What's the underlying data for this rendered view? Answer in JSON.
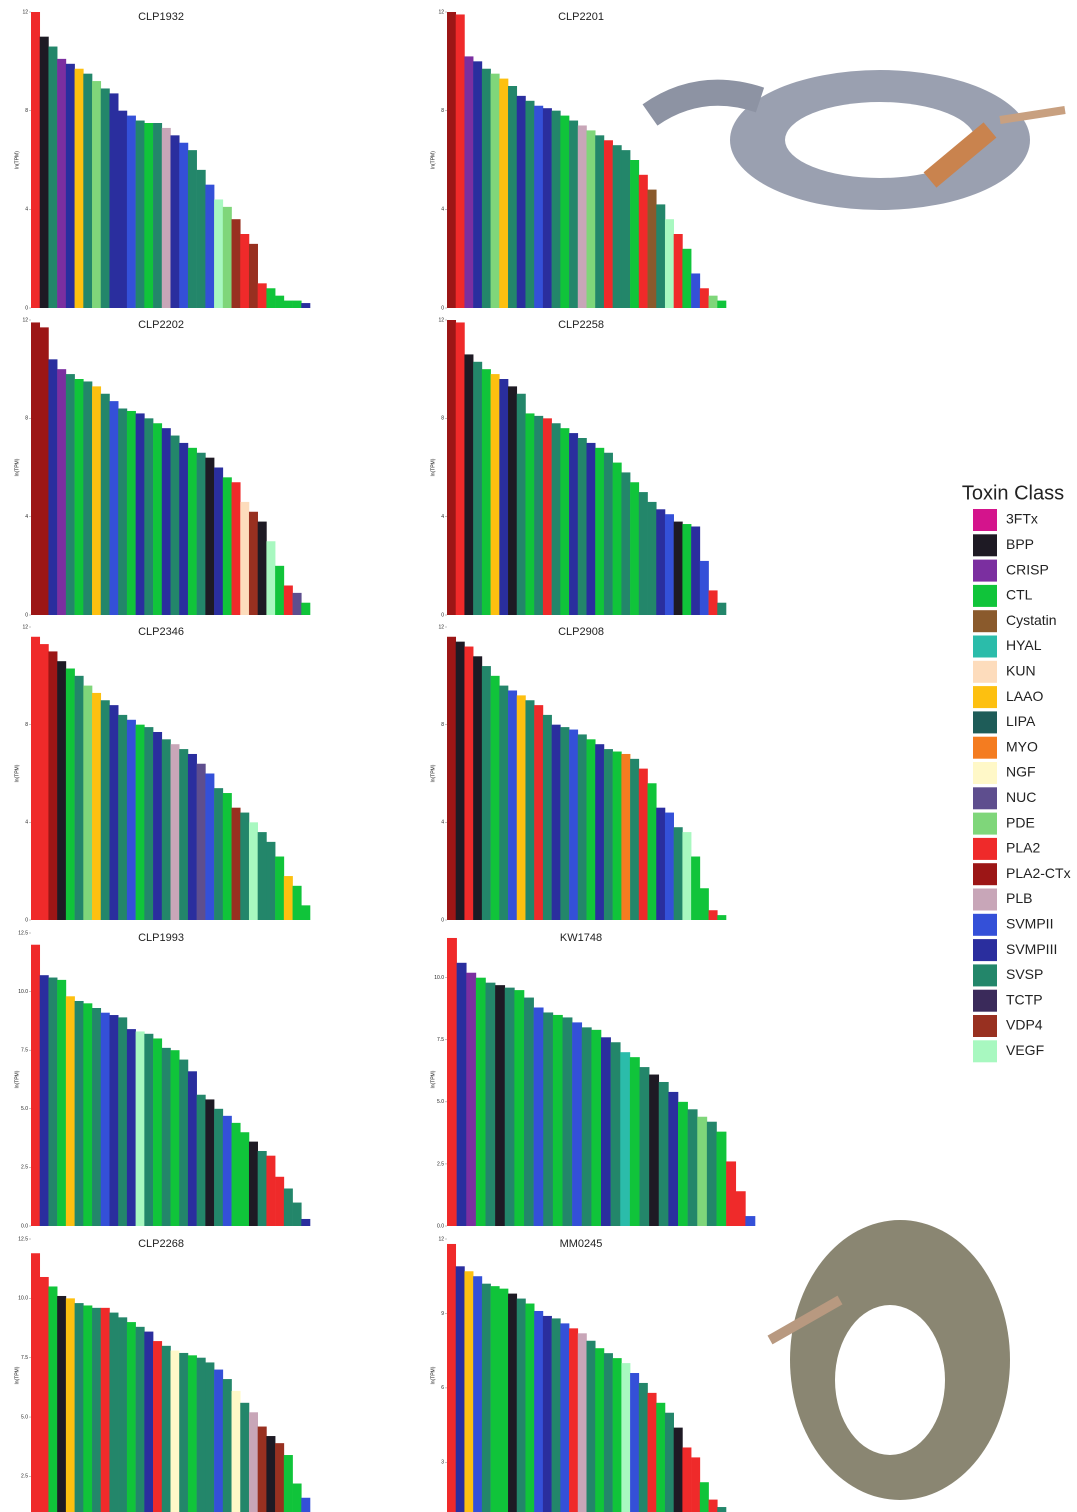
{
  "chart_data": [
    {
      "type": "bar",
      "title": "CLP1932",
      "y_label": "ln(TPM)",
      "ylim": [
        0,
        12
      ],
      "yticks": [
        0,
        4,
        8,
        12
      ],
      "values": [
        12,
        11,
        10.6,
        10.1,
        9.9,
        9.7,
        9.5,
        9.2,
        8.9,
        8.7,
        8,
        7.8,
        7.6,
        7.5,
        7.5,
        7.3,
        7,
        6.7,
        6.4,
        5.6,
        5,
        4.4,
        4.1,
        3.6,
        3,
        2.6,
        1,
        0.8,
        0.5,
        0.3,
        0.3,
        0.2
      ],
      "colors": [
        "#ef2a2a",
        "#1e1a24",
        "#23866a",
        "#7b2fa0",
        "#2a2e9e",
        "#fdc010",
        "#23866a",
        "#7fd67a",
        "#23866a",
        "#2a2e9e",
        "#2a2e9e",
        "#3450d8",
        "#23866a",
        "#10c43a",
        "#23866a",
        "#c8a6b8",
        "#2a2e9e",
        "#3450d8",
        "#23866a",
        "#23866a",
        "#3450d8",
        "#a8f8c0",
        "#7fd67a",
        "#983020",
        "#ef2a2a",
        "#983020",
        "#ef2a2a",
        "#10c43a",
        "#10c43a",
        "#10c43a",
        "#10c43a",
        "#2a2e9e"
      ]
    },
    {
      "type": "bar",
      "title": "CLP2201",
      "y_label": "ln(TPM)",
      "ylim": [
        0,
        12
      ],
      "yticks": [
        0,
        4,
        8,
        12
      ],
      "values": [
        12,
        11.9,
        10.2,
        10,
        9.7,
        9.5,
        9.3,
        9,
        8.6,
        8.4,
        8.2,
        8.1,
        8,
        7.8,
        7.6,
        7.4,
        7.2,
        7,
        6.8,
        6.6,
        6.4,
        6,
        5.4,
        4.8,
        4.2,
        3.6,
        3,
        2.4,
        1.4,
        0.8,
        0.5,
        0.3
      ],
      "colors": [
        "#9c1616",
        "#ef2a2a",
        "#7b2fa0",
        "#2a2e9e",
        "#23866a",
        "#7fd67a",
        "#fdc010",
        "#23866a",
        "#2a2e9e",
        "#23866a",
        "#3450d8",
        "#2a2e9e",
        "#23866a",
        "#10c43a",
        "#23866a",
        "#c8a6b8",
        "#7fd67a",
        "#23866a",
        "#ef2a2a",
        "#23866a",
        "#23866a",
        "#10c43a",
        "#ef2a2a",
        "#8a5a2c",
        "#23866a",
        "#a8f8c0",
        "#ef2a2a",
        "#10c43a",
        "#3450d8",
        "#ef2a2a",
        "#7fd67a",
        "#10c43a"
      ]
    },
    {
      "type": "bar",
      "title": "CLP2202",
      "y_label": "ln(TPM)",
      "ylim": [
        0,
        12
      ],
      "yticks": [
        0,
        4,
        8,
        12
      ],
      "values": [
        11.9,
        11.7,
        10.4,
        10,
        9.8,
        9.6,
        9.5,
        9.3,
        9,
        8.7,
        8.4,
        8.3,
        8.2,
        8,
        7.8,
        7.6,
        7.3,
        7,
        6.8,
        6.6,
        6.4,
        6,
        5.6,
        5.4,
        4.6,
        4.2,
        3.8,
        3,
        2,
        1.2,
        0.9,
        0.5
      ],
      "colors": [
        "#9c1616",
        "#9c1616",
        "#2a2e9e",
        "#7b2fa0",
        "#23866a",
        "#10c43a",
        "#23866a",
        "#fdc010",
        "#23866a",
        "#3450d8",
        "#23866a",
        "#10c43a",
        "#2a2e9e",
        "#23866a",
        "#10c43a",
        "#2a2e9e",
        "#23866a",
        "#2a2e9e",
        "#10c43a",
        "#23866a",
        "#1e1a24",
        "#2a2e9e",
        "#10c43a",
        "#ef2a2a",
        "#fddcbc",
        "#983020",
        "#1e1a24",
        "#a8f8c0",
        "#10c43a",
        "#ef2a2a",
        "#5e4e8e",
        "#10c43a"
      ]
    },
    {
      "type": "bar",
      "title": "CLP2258",
      "y_label": "ln(TPM)",
      "ylim": [
        0,
        12
      ],
      "yticks": [
        0,
        4,
        8,
        12
      ],
      "values": [
        12,
        11.9,
        10.6,
        10.3,
        10,
        9.8,
        9.6,
        9.3,
        9,
        8.2,
        8.1,
        8,
        7.8,
        7.6,
        7.4,
        7.2,
        7,
        6.8,
        6.6,
        6.2,
        5.8,
        5.4,
        5,
        4.6,
        4.3,
        4.1,
        3.8,
        3.7,
        3.6,
        2.2,
        1,
        0.5
      ],
      "colors": [
        "#9c1616",
        "#ef2a2a",
        "#1e1a24",
        "#23866a",
        "#10c43a",
        "#fdc010",
        "#2a2e9e",
        "#1e1a24",
        "#23866a",
        "#10c43a",
        "#23866a",
        "#ef2a2a",
        "#23866a",
        "#10c43a",
        "#2a2e9e",
        "#23866a",
        "#2a2e9e",
        "#10c43a",
        "#23866a",
        "#10c43a",
        "#23866a",
        "#10c43a",
        "#23866a",
        "#23866a",
        "#2a2e9e",
        "#3450d8",
        "#1e1a24",
        "#10c43a",
        "#2a2e9e",
        "#3450d8",
        "#ef2a2a",
        "#23866a"
      ]
    },
    {
      "type": "bar",
      "title": "CLP2346",
      "y_label": "ln(TPM)",
      "ylim": [
        0,
        12
      ],
      "yticks": [
        0,
        4,
        8,
        12
      ],
      "values": [
        11.6,
        11.3,
        11,
        10.6,
        10.3,
        10,
        9.6,
        9.3,
        9,
        8.8,
        8.4,
        8.2,
        8,
        7.9,
        7.7,
        7.4,
        7.2,
        7,
        6.8,
        6.4,
        6,
        5.4,
        5.2,
        4.6,
        4.4,
        4,
        3.6,
        3.2,
        2.6,
        1.8,
        1.4,
        0.6
      ],
      "colors": [
        "#ef2a2a",
        "#ef2a2a",
        "#9c1616",
        "#1e1a24",
        "#10c43a",
        "#23866a",
        "#7fd67a",
        "#fdc010",
        "#23866a",
        "#2a2e9e",
        "#23866a",
        "#3450d8",
        "#10c43a",
        "#23866a",
        "#2a2e9e",
        "#23866a",
        "#c8a6b8",
        "#23866a",
        "#2a2e9e",
        "#5e4e8e",
        "#3450d8",
        "#23866a",
        "#10c43a",
        "#983020",
        "#23866a",
        "#a8f8c0",
        "#23866a",
        "#23866a",
        "#10c43a",
        "#fdc010",
        "#10c43a",
        "#10c43a"
      ]
    },
    {
      "type": "bar",
      "title": "CLP2908",
      "y_label": "ln(TPM)",
      "ylim": [
        0,
        12
      ],
      "yticks": [
        0,
        4,
        8,
        12
      ],
      "values": [
        11.6,
        11.4,
        11.2,
        10.8,
        10.4,
        10,
        9.6,
        9.4,
        9.2,
        9,
        8.8,
        8.4,
        8,
        7.9,
        7.8,
        7.6,
        7.4,
        7.2,
        7,
        6.9,
        6.8,
        6.6,
        6.2,
        5.6,
        4.6,
        4.4,
        3.8,
        3.6,
        2.6,
        1.3,
        0.4,
        0.2
      ],
      "colors": [
        "#9c1616",
        "#1e1a24",
        "#ef2a2a",
        "#1e1a24",
        "#23866a",
        "#10c43a",
        "#23866a",
        "#3450d8",
        "#fdc010",
        "#23866a",
        "#ef2a2a",
        "#23866a",
        "#2a2e9e",
        "#23866a",
        "#3450d8",
        "#23866a",
        "#10c43a",
        "#2a2e9e",
        "#23866a",
        "#10c43a",
        "#f47c20",
        "#23866a",
        "#ef2a2a",
        "#10c43a",
        "#2a2e9e",
        "#3450d8",
        "#23866a",
        "#a8f8c0",
        "#10c43a",
        "#10c43a",
        "#ef2a2a",
        "#10c43a"
      ]
    },
    {
      "type": "bar",
      "title": "CLP1993",
      "y_label": "ln(TPM)",
      "ylim": [
        0,
        12.5
      ],
      "yticks": [
        {
          "value": 0,
          "label": "0.0"
        },
        2.5,
        {
          "value": 5,
          "label": "5.0"
        },
        7.5,
        {
          "value": 10,
          "label": "10.0"
        },
        12.5
      ],
      "values": [
        12,
        10.7,
        10.6,
        10.5,
        9.8,
        9.6,
        9.5,
        9.3,
        9.1,
        9,
        8.9,
        8.4,
        8.3,
        8.2,
        8,
        7.6,
        7.5,
        7.1,
        6.6,
        5.6,
        5.4,
        5,
        4.7,
        4.4,
        4,
        3.6,
        3.2,
        3,
        2.1,
        1.6,
        1,
        0.3
      ],
      "colors": [
        "#ef2a2a",
        "#2a2e9e",
        "#23866a",
        "#10c43a",
        "#fdc010",
        "#23866a",
        "#10c43a",
        "#23866a",
        "#3450d8",
        "#2a2e9e",
        "#23866a",
        "#2a2e9e",
        "#a8f8c0",
        "#23866a",
        "#10c43a",
        "#23866a",
        "#10c43a",
        "#23866a",
        "#2a2e9e",
        "#23866a",
        "#1e1a24",
        "#23866a",
        "#3450d8",
        "#10c43a",
        "#10c43a",
        "#1e1a24",
        "#23866a",
        "#ef2a2a",
        "#ef2a2a",
        "#23866a",
        "#23866a",
        "#2a2e9e"
      ]
    },
    {
      "type": "bar",
      "title": "KW1748",
      "y_label": "ln(TPM)",
      "ylim": [
        0,
        11.8
      ],
      "yticks": [
        {
          "value": 0,
          "label": "0.0"
        },
        2.5,
        {
          "value": 5,
          "label": "5.0"
        },
        7.5,
        {
          "value": 10,
          "label": "10.0"
        }
      ],
      "values": [
        11.6,
        10.6,
        10.2,
        10,
        9.8,
        9.7,
        9.6,
        9.5,
        9.2,
        8.8,
        8.6,
        8.5,
        8.4,
        8.2,
        8,
        7.9,
        7.6,
        7.4,
        7,
        6.8,
        6.4,
        6.1,
        5.8,
        5.4,
        5,
        4.7,
        4.4,
        4.2,
        3.8,
        2.6,
        1.4,
        0.4
      ],
      "colors": [
        "#ef2a2a",
        "#2a2e9e",
        "#7b2fa0",
        "#10c43a",
        "#23866a",
        "#1e1a24",
        "#23866a",
        "#10c43a",
        "#23866a",
        "#3450d8",
        "#23866a",
        "#10c43a",
        "#23866a",
        "#3450d8",
        "#23866a",
        "#10c43a",
        "#2a2e9e",
        "#23866a",
        "#2bbcaa",
        "#10c43a",
        "#23866a",
        "#1e1a24",
        "#23866a",
        "#2a2e9e",
        "#10c43a",
        "#23866a",
        "#7fd67a",
        "#23866a",
        "#10c43a",
        "#ef2a2a",
        "#ef2a2a",
        "#3450d8"
      ]
    },
    {
      "type": "bar",
      "title": "CLP2268",
      "y_label": "ln(TPM)",
      "ylim": [
        1,
        12.5
      ],
      "yticks": [
        2.5,
        {
          "value": 5,
          "label": "5.0"
        },
        7.5,
        {
          "value": 10,
          "label": "10.0"
        },
        12.5
      ],
      "values": [
        11.9,
        10.9,
        10.5,
        10.1,
        10,
        9.8,
        9.7,
        9.6,
        9.6,
        9.4,
        9.2,
        9,
        8.8,
        8.6,
        8.2,
        8,
        7.8,
        7.7,
        7.6,
        7.5,
        7.3,
        7,
        6.6,
        6.1,
        5.6,
        5.2,
        4.6,
        4.2,
        3.9,
        3.4,
        2.2,
        1.6
      ],
      "colors": [
        "#ef2a2a",
        "#ef2a2a",
        "#10c43a",
        "#1e1a24",
        "#fdc010",
        "#23866a",
        "#10c43a",
        "#23866a",
        "#ef2a2a",
        "#23866a",
        "#23866a",
        "#10c43a",
        "#23866a",
        "#2a2e9e",
        "#ef2a2a",
        "#23866a",
        "#fff8c8",
        "#23866a",
        "#10c43a",
        "#23866a",
        "#23866a",
        "#3450d8",
        "#23866a",
        "#fff8c8",
        "#23866a",
        "#c8a6b8",
        "#983020",
        "#1e1a24",
        "#983020",
        "#10c43a",
        "#10c43a",
        "#3450d8"
      ]
    },
    {
      "type": "bar",
      "title": "MM0245",
      "y_label": "ln(TPM)",
      "ylim": [
        1,
        12
      ],
      "yticks": [
        3,
        6,
        9,
        12
      ],
      "values": [
        11.8,
        10.9,
        10.7,
        10.5,
        10.2,
        10.1,
        10,
        9.8,
        9.6,
        9.4,
        9.1,
        8.9,
        8.8,
        8.6,
        8.4,
        8.2,
        7.9,
        7.6,
        7.4,
        7.2,
        7,
        6.6,
        6.2,
        5.8,
        5.4,
        5,
        4.4,
        3.6,
        3.2,
        2.2,
        1.5,
        1.2
      ],
      "colors": [
        "#ef2a2a",
        "#2a2e9e",
        "#fdc010",
        "#3450d8",
        "#23866a",
        "#10c43a",
        "#10c43a",
        "#1e1a24",
        "#23866a",
        "#10c43a",
        "#3450d8",
        "#2a2e9e",
        "#23866a",
        "#3450d8",
        "#ef2a2a",
        "#c8a6b8",
        "#23866a",
        "#10c43a",
        "#23866a",
        "#10c43a",
        "#a8f8c0",
        "#3450d8",
        "#23866a",
        "#ef2a2a",
        "#10c43a",
        "#23866a",
        "#1e1a24",
        "#ef2a2a",
        "#ef2a2a",
        "#10c43a",
        "#ef2a2a",
        "#23866a"
      ]
    }
  ],
  "legend": {
    "title": "Toxin Class",
    "items": [
      {
        "name": "3FTx",
        "color": "#d4148c"
      },
      {
        "name": "BPP",
        "color": "#1e1a24"
      },
      {
        "name": "CRISP",
        "color": "#7b2fa0"
      },
      {
        "name": "CTL",
        "color": "#10c43a"
      },
      {
        "name": "Cystatin",
        "color": "#8a5a2c"
      },
      {
        "name": "HYAL",
        "color": "#2bbcaa"
      },
      {
        "name": "KUN",
        "color": "#fddcbc"
      },
      {
        "name": "LAAO",
        "color": "#fdc010"
      },
      {
        "name": "LIPA",
        "color": "#1e5c58"
      },
      {
        "name": "MYO",
        "color": "#f47c20"
      },
      {
        "name": "NGF",
        "color": "#fff8c8"
      },
      {
        "name": "NUC",
        "color": "#5e4e8e"
      },
      {
        "name": "PDE",
        "color": "#7fd67a"
      },
      {
        "name": "PLA2",
        "color": "#ef2a2a"
      },
      {
        "name": "PLA2-CTx",
        "color": "#9c1616"
      },
      {
        "name": "PLB",
        "color": "#c8a6b8"
      },
      {
        "name": "SVMPII",
        "color": "#3450d8"
      },
      {
        "name": "SVMPIII",
        "color": "#2a2e9e"
      },
      {
        "name": "SVSP",
        "color": "#23866a"
      },
      {
        "name": "TCTP",
        "color": "#3a2a5a"
      },
      {
        "name": "VDP4",
        "color": "#983020"
      },
      {
        "name": "VEGF",
        "color": "#a8f8c0"
      }
    ]
  }
}
